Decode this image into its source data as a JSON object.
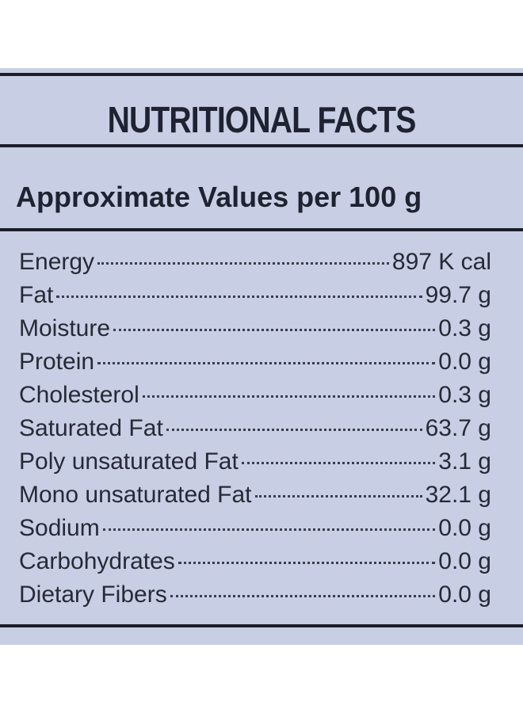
{
  "header": {
    "title": "NUTRITIONAL FACTS",
    "subtitle": "Approximate Values per 100 g"
  },
  "table": {
    "rows": [
      [
        "Energy",
        "897 K cal"
      ],
      [
        "Fat",
        "99.7 g"
      ],
      [
        "Moisture",
        "0.3 g"
      ],
      [
        "Protein",
        "0.0 g"
      ],
      [
        "Cholesterol",
        "0.3 g"
      ],
      [
        "Saturated Fat",
        "63.7 g"
      ],
      [
        "Poly unsaturated Fat",
        "3.1 g"
      ],
      [
        "Mono unsaturated Fat",
        "32.1 g"
      ],
      [
        "Sodium",
        "0.0 g"
      ],
      [
        "Carbohydrates",
        "0.0 g"
      ],
      [
        "Dietary Fibers",
        "0.0 g"
      ]
    ]
  }
}
